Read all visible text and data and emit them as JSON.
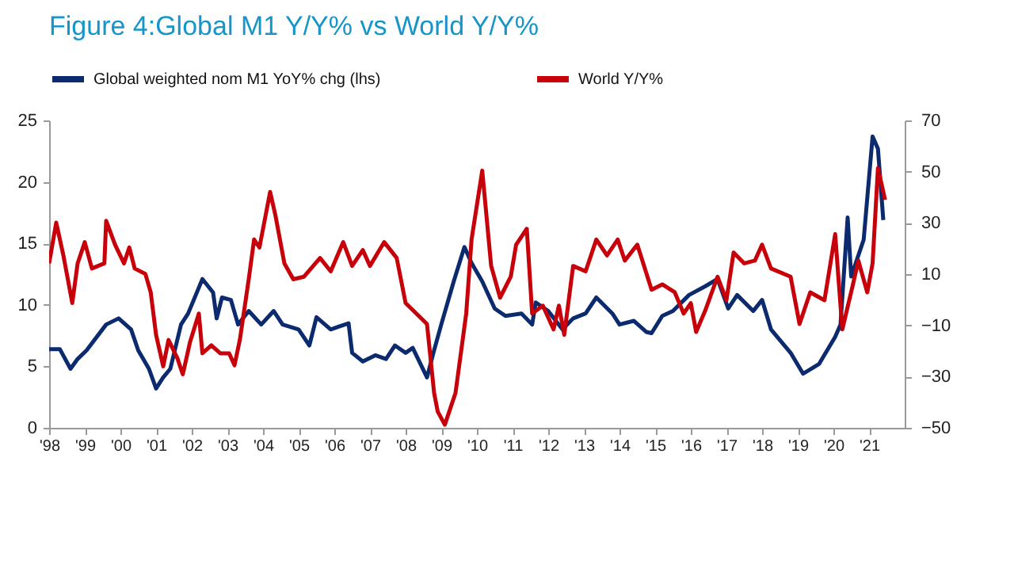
{
  "chart_data": {
    "type": "line",
    "title": "Figure 4:Global M1 Y/Y% vs World Y/Y%",
    "legend": "top",
    "x": [
      1998,
      1998.3,
      1998.6,
      1998.8,
      1999.05,
      1999.6,
      1999.95,
      2000.3,
      2000.5,
      2000.8,
      2001.0,
      2001.2,
      2001.4,
      2001.7,
      2001.9,
      2002.3,
      2002.6,
      2002.7,
      2002.85,
      2003.1,
      2003.3,
      2003.6,
      2003.95,
      2004.3,
      2004.55,
      2005.0,
      2005.3,
      2005.5,
      2005.9,
      2006.1,
      2006.4,
      2006.5,
      2006.8,
      2007.15,
      2007.45,
      2007.7,
      2008.0,
      2008.2,
      2008.6,
      2008.8,
      2009.0,
      2009.35,
      2009.65,
      2009.85,
      2010.15,
      2010.5,
      2010.8,
      2011.25,
      2011.55,
      2011.65,
      2012.0,
      2012.4,
      2012.7,
      2013.05,
      2013.35,
      2013.8,
      2014.0,
      2014.4,
      2014.75,
      2014.9,
      2015.2,
      2015.5,
      2015.95,
      2016.4,
      2016.75,
      2017.05,
      2017.3,
      2017.75,
      2018.0,
      2018.25,
      2018.8,
      2019.15,
      2019.6,
      2020.05,
      2020.2,
      2020.4,
      2020.5,
      2020.85,
      2021.1,
      2021.25,
      2021.4
    ],
    "xlim": [
      1998,
      2022
    ],
    "xticks": [
      {
        "value": 1998,
        "label": "'98"
      },
      {
        "value": 1999,
        "label": "'99"
      },
      {
        "value": 2000,
        "label": "'00"
      },
      {
        "value": 2001,
        "label": "'01"
      },
      {
        "value": 2002,
        "label": "'02"
      },
      {
        "value": 2003,
        "label": "'03"
      },
      {
        "value": 2004,
        "label": "'04"
      },
      {
        "value": 2005,
        "label": "'05"
      },
      {
        "value": 2006,
        "label": "'06"
      },
      {
        "value": 2007,
        "label": "'07"
      },
      {
        "value": 2008,
        "label": "'08"
      },
      {
        "value": 2009,
        "label": "'09"
      },
      {
        "value": 2010,
        "label": "'10"
      },
      {
        "value": 2011,
        "label": "'11"
      },
      {
        "value": 2012,
        "label": "'12"
      },
      {
        "value": 2013,
        "label": "'13"
      },
      {
        "value": 2014,
        "label": "'14"
      },
      {
        "value": 2015,
        "label": "'15"
      },
      {
        "value": 2016,
        "label": "'16"
      },
      {
        "value": 2017,
        "label": "'17"
      },
      {
        "value": 2018,
        "label": "'18"
      },
      {
        "value": 2019,
        "label": "'19"
      },
      {
        "value": 2020,
        "label": "'20"
      },
      {
        "value": 2021,
        "label": "'21"
      }
    ],
    "ylim": [
      0,
      25
    ],
    "yticks": [
      0,
      5,
      10,
      15,
      20,
      25
    ],
    "y2lim": [
      -50,
      70
    ],
    "y2ticks": [
      -50,
      -30,
      -10,
      10,
      30,
      50,
      70
    ],
    "series": [
      {
        "name": "Global weighted nom M1 YoY% chg (lhs)",
        "color": "#0c2a6e",
        "values": [
          6.4,
          6.4,
          4.8,
          5.6,
          6.3,
          8.4,
          8.9,
          8.0,
          6.3,
          4.8,
          3.2,
          4.1,
          4.8,
          8.4,
          9.3,
          12.1,
          11.0,
          8.9,
          10.6,
          10.4,
          8.4,
          9.5,
          8.4,
          9.5,
          8.4,
          8.0,
          6.7,
          9.0,
          8.0,
          8.2,
          8.5,
          6.1,
          5.4,
          5.9,
          5.6,
          6.7,
          6.1,
          6.5,
          4.1,
          6.3,
          8.4,
          11.9,
          14.7,
          13.4,
          11.9,
          9.7,
          9.1,
          9.3,
          8.4,
          10.2,
          9.5,
          8.0,
          8.9,
          9.3,
          10.6,
          9.3,
          8.4,
          8.7,
          7.8,
          7.7,
          9.1,
          9.5,
          10.8,
          11.5,
          12.1,
          9.7,
          10.8,
          9.5,
          10.4,
          8.0,
          6.1,
          4.4,
          5.2,
          7.4,
          8.4,
          17.1,
          12.3,
          15.3,
          23.7,
          22.7,
          16.9
        ]
      },
      {
        "name": "World Y/Y%",
        "color": "#c8000a",
        "axis": "y2",
        "x": [
          1998,
          1998.2,
          1998.4,
          1998.65,
          1998.8,
          1999.0,
          1999.2,
          1999.55,
          1999.6,
          1999.85,
          2000.1,
          2000.25,
          2000.4,
          2000.7,
          2000.85,
          2001.0,
          2001.2,
          2001.35,
          2001.6,
          2001.75,
          2001.95,
          2002.2,
          2002.3,
          2002.55,
          2002.8,
          2003.05,
          2003.2,
          2003.35,
          2003.6,
          2003.75,
          2003.9,
          2004.2,
          2004.35,
          2004.6,
          2004.85,
          2005.15,
          2005.6,
          2005.9,
          2006.25,
          2006.5,
          2006.8,
          2007.0,
          2007.4,
          2007.75,
          2008.0,
          2008.3,
          2008.6,
          2008.8,
          2008.9,
          2009.1,
          2009.4,
          2009.7,
          2009.85,
          2010.15,
          2010.4,
          2010.65,
          2010.95,
          2011.1,
          2011.4,
          2011.55,
          2011.85,
          2012.15,
          2012.3,
          2012.45,
          2012.7,
          2013.05,
          2013.35,
          2013.65,
          2013.95,
          2014.15,
          2014.5,
          2014.9,
          2015.2,
          2015.55,
          2015.8,
          2016.0,
          2016.15,
          2016.4,
          2016.75,
          2017.0,
          2017.2,
          2017.5,
          2017.8,
          2018.0,
          2018.25,
          2018.8,
          2019.05,
          2019.35,
          2019.75,
          2020.05,
          2020.25,
          2020.55,
          2020.7,
          2020.95,
          2021.1,
          2021.25,
          2021.45
        ],
        "values": [
          14.2,
          30.1,
          17.3,
          -1.3,
          14.2,
          22.5,
          12.2,
          14.2,
          30.8,
          21.5,
          14.2,
          20.4,
          12.2,
          10.1,
          2.9,
          -13.7,
          -26,
          -15.7,
          -22.9,
          -29.1,
          -16.7,
          -5.4,
          -20.9,
          -17.8,
          -20.9,
          -20.9,
          -25.6,
          -15.7,
          8,
          23.5,
          20.4,
          42.1,
          32.8,
          14.2,
          8,
          9,
          16.3,
          11.1,
          22.5,
          13.2,
          19.4,
          13.2,
          22.5,
          16.3,
          -1.3,
          -5.4,
          -9.5,
          -36.4,
          -43.6,
          -48.8,
          -36.4,
          -5.4,
          23.5,
          50.4,
          13.2,
          0.8,
          9,
          21.5,
          27.7,
          -5.4,
          -2.3,
          -11.6,
          -2.3,
          -13.7,
          13.2,
          11.1,
          23.5,
          17.3,
          23.5,
          15.3,
          21.5,
          3.9,
          6,
          2.9,
          -5.4,
          -1.3,
          -12.6,
          -4.4,
          9,
          -0.2,
          18.4,
          14.2,
          15.3,
          21.5,
          12.2,
          9,
          -9.5,
          2.9,
          -0.2,
          25.6,
          -11.6,
          6,
          15.3,
          2.9,
          14.2,
          51.4,
          39
        ]
      }
    ]
  }
}
